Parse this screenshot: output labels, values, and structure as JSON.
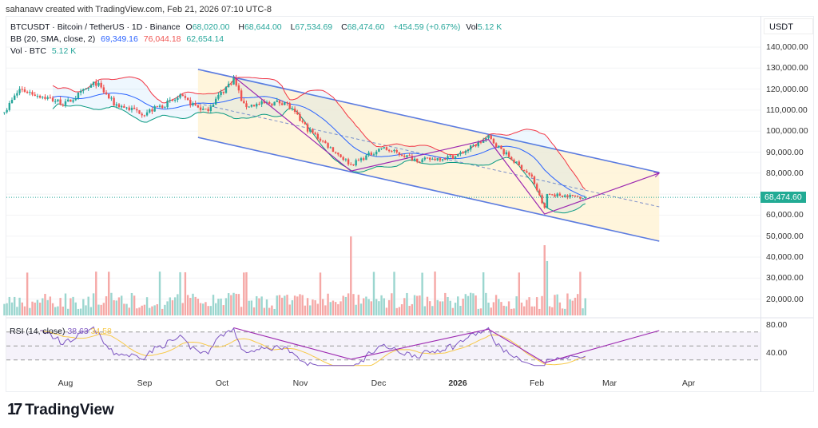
{
  "header": {
    "credit": "sahanavv created with TradingView.com, Feb 21, 2026 07:10 UTC-8"
  },
  "legend": {
    "symbol": "BTCUSDT · Bitcoin / TetherUS · 1D · Binance",
    "o_label": "O",
    "o": "68,020.00",
    "h_label": "H",
    "h": "68,644.00",
    "l_label": "L",
    "l": "67,534.69",
    "c_label": "C",
    "c": "68,474.60",
    "change": "+454.59 (+0.67%)",
    "vol_label": "Vol",
    "vol": "5.12 K",
    "bb_label": "BB (20, SMA, close, 2)",
    "bb_basis": "69,349.16",
    "bb_upper": "76,044.18",
    "bb_lower": "62,654.14",
    "volbtc_label": "Vol · BTC",
    "volbtc": "5.12 K",
    "rsi_label": "RSI (14, close)",
    "rsi": "38.63",
    "rsi_ma": "34.58"
  },
  "price_axis": {
    "currency": "USDT",
    "ticks": [
      "140,000.00",
      "130,000.00",
      "120,000.00",
      "110,000.00",
      "100,000.00",
      "90,000.00",
      "80,000.00",
      "60,000.00",
      "50,000.00",
      "40,000.00",
      "30,000.00",
      "20,000.00"
    ],
    "last_price": "68,474.60"
  },
  "rsi_axis": {
    "ticks": [
      "80.00",
      "40.00"
    ]
  },
  "time_axis": {
    "ticks": [
      "Aug",
      "Sep",
      "Oct",
      "Nov",
      "Dec",
      "2026",
      "Feb",
      "Mar",
      "Apr"
    ]
  },
  "brand": {
    "name": "TradingView"
  },
  "colors": {
    "up": "#26a69a",
    "down": "#ef5350",
    "bb_basis": "#2962ff",
    "bb_upper": "#f23645",
    "bb_lower": "#089981",
    "channel": "#5b7be0",
    "trend": "#9c27b0",
    "rsi": "#7e57c2",
    "rsi_ma": "#f7c948"
  },
  "chart_data": {
    "type": "candlestick",
    "interval": "1D",
    "start": "2025-07-08",
    "end": "2026-02-21",
    "close_path": [
      [
        "2025-07-08",
        109000
      ],
      [
        "2025-07-14",
        120000
      ],
      [
        "2025-08-01",
        113000
      ],
      [
        "2025-08-13",
        123000
      ],
      [
        "2025-08-20",
        113000
      ],
      [
        "2025-09-01",
        108500
      ],
      [
        "2025-09-15",
        116000
      ],
      [
        "2025-09-25",
        109500
      ],
      [
        "2025-10-06",
        125000
      ],
      [
        "2025-10-10",
        112000
      ],
      [
        "2025-10-26",
        114000
      ],
      [
        "2025-11-04",
        101000
      ],
      [
        "2025-11-21",
        84000
      ],
      [
        "2025-12-03",
        92000
      ],
      [
        "2025-12-18",
        86000
      ],
      [
        "2026-01-01",
        88000
      ],
      [
        "2026-01-14",
        97000
      ],
      [
        "2026-01-20",
        90000
      ],
      [
        "2026-01-31",
        78000
      ],
      [
        "2026-02-05",
        63000
      ],
      [
        "2026-02-06",
        70000
      ],
      [
        "2026-02-21",
        68474.6
      ]
    ],
    "channel": {
      "upper": [
        [
          "2025-09-22",
          129400
        ],
        [
          "2026-03-22",
          80300
        ]
      ],
      "lower": [
        [
          "2025-09-22",
          97000
        ],
        [
          "2026-03-22",
          47600
        ]
      ]
    },
    "trend_lines": [
      [
        "2025-10-06",
        126000
      ],
      [
        "2025-11-21",
        81000
      ],
      [
        "2026-01-14",
        96000
      ],
      [
        "2026-02-05",
        60500
      ],
      [
        "2026-03-22",
        80000
      ]
    ],
    "rsi_levels": [
      70,
      50,
      30
    ],
    "ylim": [
      20000,
      140000
    ]
  }
}
